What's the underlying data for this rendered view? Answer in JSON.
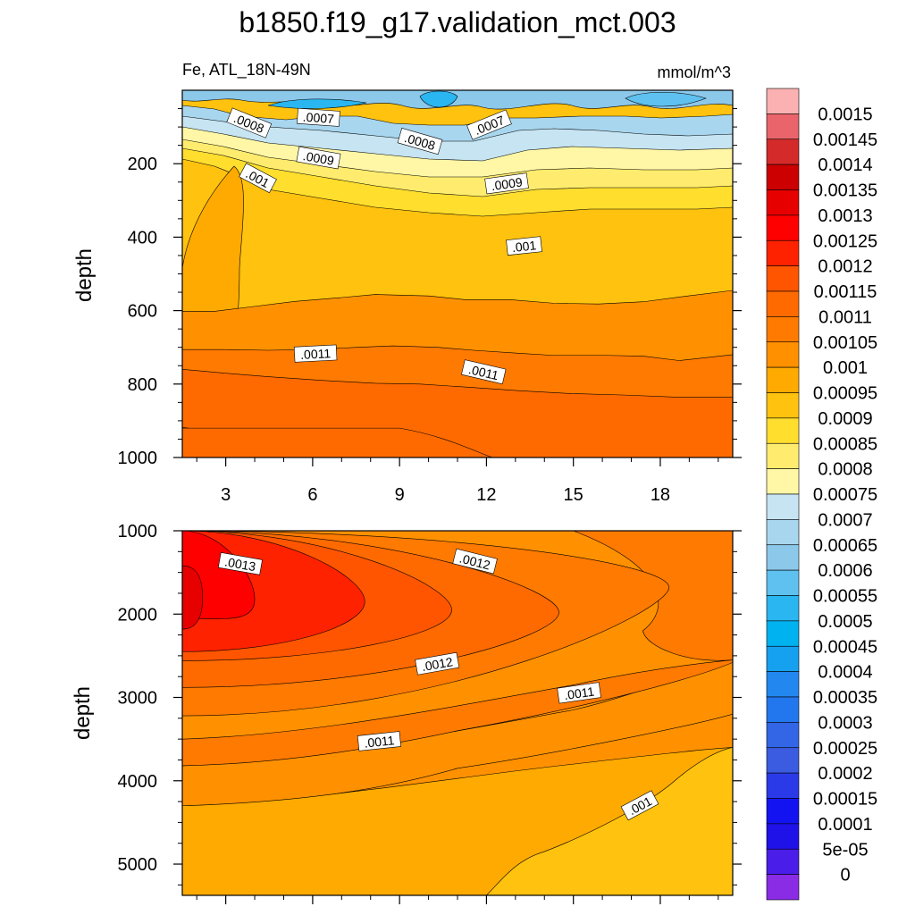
{
  "title": "b1850.f19_g17.validation_mct.003",
  "chart_data": [
    {
      "type": "heatmap",
      "panel": "upper",
      "variable_label": "Fe, ATL_18N-49N",
      "units": "mmol/m^3",
      "xlabel": "",
      "ylabel": "depth",
      "x_ticks": [
        3,
        6,
        9,
        12,
        15,
        18
      ],
      "y_ticks": [
        200,
        400,
        600,
        800,
        1000
      ],
      "xlim": [
        1.5,
        20.5
      ],
      "ylim": [
        1000,
        0
      ],
      "contour_labels": [
        {
          "text": ".0007",
          "x": 6.2,
          "y": 75,
          "angle": 4
        },
        {
          "text": ".0008",
          "x": 3.8,
          "y": 90,
          "angle": 22
        },
        {
          "text": ".0009",
          "x": 6.2,
          "y": 185,
          "angle": 10
        },
        {
          "text": ".001",
          "x": 4.1,
          "y": 240,
          "angle": 28
        },
        {
          "text": ".0008",
          "x": 9.7,
          "y": 140,
          "angle": 16
        },
        {
          "text": ".0007",
          "x": 12.1,
          "y": 95,
          "angle": -22
        },
        {
          "text": ".0009",
          "x": 12.7,
          "y": 255,
          "angle": -8
        },
        {
          "text": ".001",
          "x": 13.3,
          "y": 425,
          "angle": -6
        },
        {
          "text": ".0011",
          "x": 6.1,
          "y": 718,
          "angle": -3
        },
        {
          "text": ".0011",
          "x": 11.9,
          "y": 768,
          "angle": 13
        }
      ]
    },
    {
      "type": "heatmap",
      "panel": "lower",
      "variable_label": "",
      "xlabel": "",
      "ylabel": "depth",
      "y_ticks": [
        1000,
        2000,
        3000,
        4000,
        5000
      ],
      "xlim": [
        1.5,
        20.5
      ],
      "ylim": [
        5375,
        1000
      ],
      "contour_labels": [
        {
          "text": ".0013",
          "x": 3.5,
          "y": 1400,
          "angle": 10
        },
        {
          "text": ".0012",
          "x": 11.6,
          "y": 1370,
          "angle": 14
        },
        {
          "text": ".0012",
          "x": 10.3,
          "y": 2600,
          "angle": -10
        },
        {
          "text": ".0011",
          "x": 15.2,
          "y": 2950,
          "angle": -8
        },
        {
          "text": ".0011",
          "x": 8.3,
          "y": 3530,
          "angle": -6
        },
        {
          "text": ".001",
          "x": 17.3,
          "y": 4300,
          "angle": -28
        }
      ]
    }
  ],
  "colorbar": {
    "labels": [
      "0.0015",
      "0.00145",
      "0.0014",
      "0.00135",
      "0.0013",
      "0.00125",
      "0.0012",
      "0.00115",
      "0.0011",
      "0.00105",
      "0.001",
      "0.00095",
      "0.0009",
      "0.00085",
      "0.0008",
      "0.00075",
      "0.0007",
      "0.00065",
      "0.0006",
      "0.00055",
      "0.0005",
      "0.00045",
      "0.0004",
      "0.00035",
      "0.0003",
      "0.00025",
      "0.0002",
      "0.00015",
      "0.0001",
      "5e-05",
      "0"
    ],
    "colors": [
      "#FBB1B1",
      "#E9656B",
      "#D52A2A",
      "#CC0000",
      "#E60000",
      "#FF0000",
      "#FF2200",
      "#FF5500",
      "#FF6A00",
      "#FF7A00",
      "#FF9100",
      "#FFAA00",
      "#FFC20E",
      "#FFDE2E",
      "#FFEC6E",
      "#FFF7A6",
      "#C6E4F2",
      "#A8D6EE",
      "#8CC8EA",
      "#5EC1EF",
      "#2AB6F0",
      "#00B2F0",
      "#15A0F0",
      "#2288F0",
      "#2277EE",
      "#3366E6",
      "#3B5BE0",
      "#2A3AE8",
      "#1313F2",
      "#1F12E8",
      "#4A1DE8",
      "#8A2BE6"
    ]
  },
  "colors": {
    "contour_line": "#000000",
    "text": "#000000"
  }
}
